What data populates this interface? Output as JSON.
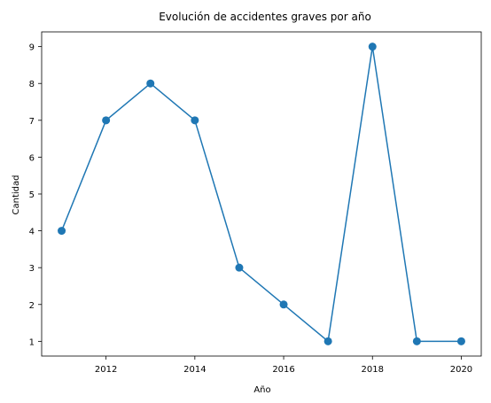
{
  "chart_data": {
    "type": "line",
    "title": "Evolución de accidentes graves por año",
    "xlabel": "Año",
    "ylabel": "Cantidad",
    "x": [
      2011,
      2012,
      2013,
      2014,
      2015,
      2016,
      2017,
      2018,
      2019,
      2020
    ],
    "series": [
      {
        "values": [
          4,
          7,
          8,
          7,
          3,
          2,
          1,
          9,
          1,
          1
        ],
        "color": "#1f77b4",
        "marker": "circle"
      }
    ],
    "xlim": [
      2010.55,
      2020.45
    ],
    "ylim": [
      0.6,
      9.4
    ],
    "xticks": [
      "2012",
      "2014",
      "2016",
      "2018",
      "2020"
    ],
    "yticks": [
      "1",
      "2",
      "3",
      "4",
      "5",
      "6",
      "7",
      "8",
      "9"
    ],
    "grid": false,
    "legend": "none"
  }
}
